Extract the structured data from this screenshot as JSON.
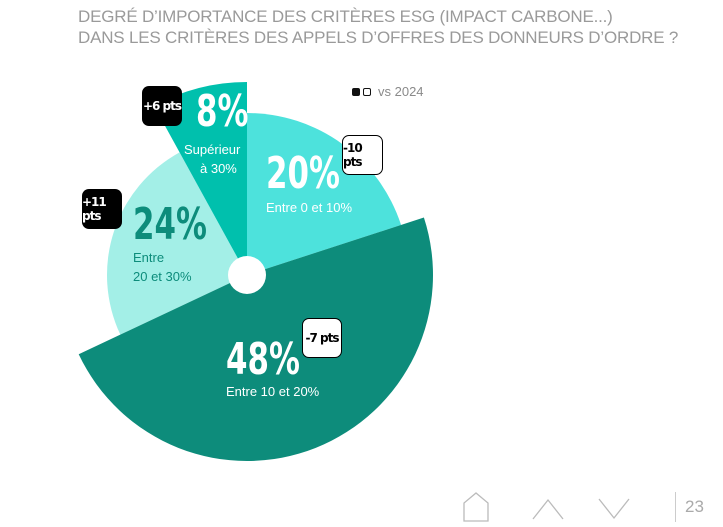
{
  "title": {
    "line1": "DEGRÉ D’IMPORTANCE DES CRITÈRES ESG (IMPACT CARBONE...)",
    "line2": "DANS LES CRITÈRES DES APPELS D’OFFRES DES DONNEURS D’ORDRE ?"
  },
  "legend": {
    "label": "vs 2024"
  },
  "chart_data": {
    "type": "pie",
    "title": "DEGRÉ D’IMPORTANCE DES CRITÈRES ESG (IMPACT CARBONE...) DANS LES CRITÈRES DES APPELS D’OFFRES DES DONNEURS D’ORDRE ?",
    "legend": "vs 2024",
    "slices": [
      {
        "value": 20,
        "label": "20%",
        "category": "Entre 0 et 10%",
        "change": "-10 pts",
        "color": "#4de2dc"
      },
      {
        "value": 48,
        "label": "48%",
        "category": "Entre 10 et 20%",
        "change": "-7 pts",
        "color": "#0d8c7b"
      },
      {
        "value": 24,
        "label": "24%",
        "category_line1": "Entre",
        "category_line2": "20 et 30%",
        "change": "+11 pts",
        "color": "#a3efe7"
      },
      {
        "value": 8,
        "label": "8%",
        "category_line1": "Supérieur",
        "category_line2": "à 30%",
        "change": "+6 pts",
        "color": "#00c0ad"
      }
    ]
  },
  "footer": {
    "page": "23"
  },
  "colors": {
    "title": "#9a9a9a",
    "text_dark_teal": "#0d8c7b",
    "white": "#ffffff"
  }
}
